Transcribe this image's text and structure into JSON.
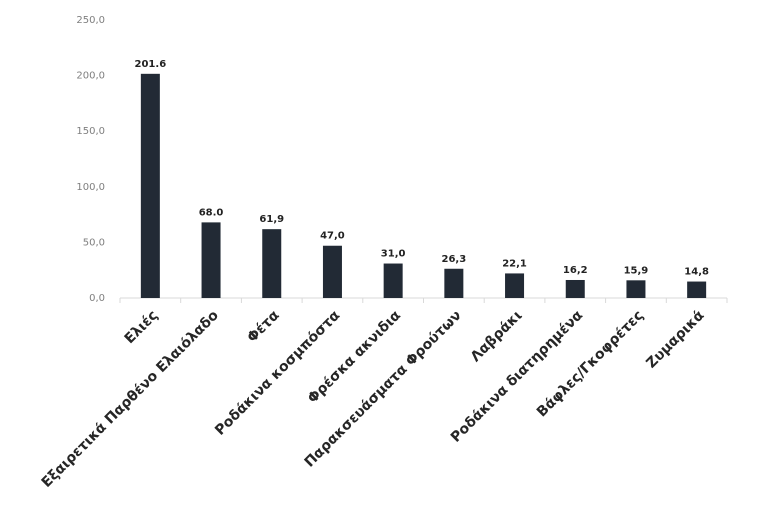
{
  "chart_data": {
    "type": "bar",
    "categories": [
      "Ελιές",
      "Εξαιρετικά Παρθένο Ελαιόλαδο",
      "Φέτα",
      "Ροδάκινα κοσμπόστα",
      "Φρέσκα ακνιδια",
      "Παρακσευάσματα Φρούτων",
      "Λαβράκι",
      "Ροδάκινα διατηρημένα",
      "Βάφλες/Γκοφρέτες",
      "Ζυμαρικά"
    ],
    "values": [
      201.6,
      68.0,
      61.9,
      47.0,
      31.0,
      26.3,
      22.1,
      16.2,
      15.9,
      14.8
    ],
    "value_labels": [
      "201.6",
      "68.0",
      "61,9",
      "47,0",
      "31,0",
      "26,3",
      "22,1",
      "16,2",
      "15,9",
      "14,8"
    ],
    "ylim": [
      0,
      250
    ],
    "y_ticks": [
      0,
      50,
      100,
      150,
      200,
      250
    ],
    "y_tick_labels": [
      "0,0",
      "50,0",
      "100,0",
      "150,0",
      "200,0",
      "250,0"
    ],
    "grid": false,
    "bar_color": "#222a35",
    "axis_color": "#d9d9d9"
  }
}
